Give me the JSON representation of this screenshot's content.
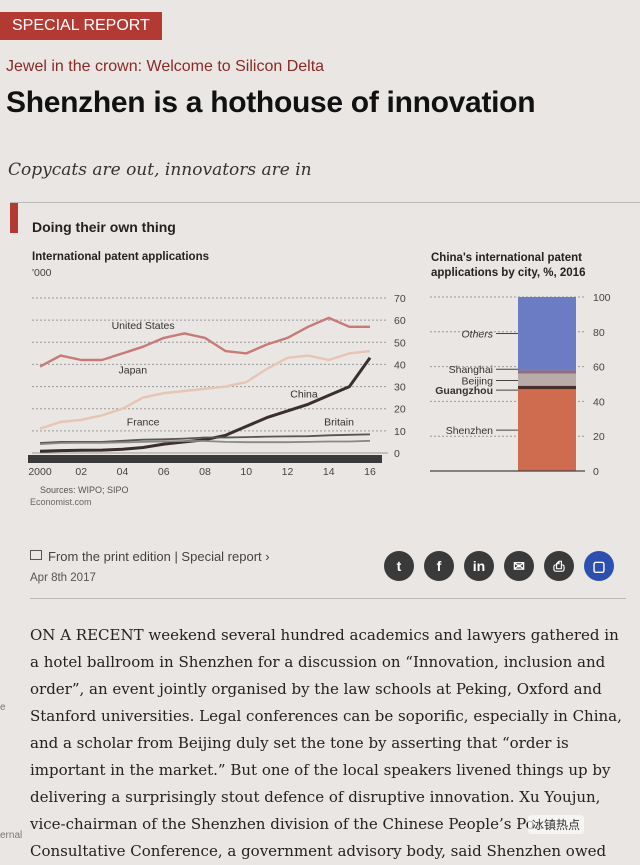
{
  "header": {
    "tag": "SPECIAL REPORT",
    "kicker": "Jewel in the crown: Welcome to Silicon Delta",
    "headline": "Shenzhen is a hothouse of innovation",
    "subhead": "Copycats are out, innovators are in"
  },
  "chart_data": [
    {
      "type": "line",
      "title": "Doing their own thing",
      "subtitle": "International patent applications",
      "unit": "'000",
      "x": [
        2000,
        2001,
        2002,
        2003,
        2004,
        2005,
        2006,
        2007,
        2008,
        2009,
        2010,
        2011,
        2012,
        2013,
        2014,
        2015,
        2016
      ],
      "xticks": [
        "2000",
        "02",
        "04",
        "06",
        "08",
        "10",
        "12",
        "14",
        "16"
      ],
      "xlim": [
        2000,
        2016
      ],
      "ylim": [
        0,
        70
      ],
      "yticks": [
        "0",
        "10",
        "20",
        "30",
        "40",
        "50",
        "60",
        "70"
      ],
      "series": [
        {
          "name": "United States",
          "color": "#c77a78",
          "values": [
            39,
            44,
            42,
            42,
            45,
            48,
            52,
            54,
            52,
            46,
            45,
            49,
            52,
            57,
            61,
            57,
            57
          ]
        },
        {
          "name": "Japan",
          "color": "#e8c4b4",
          "values": [
            11,
            14,
            15,
            17,
            20,
            25,
            27,
            28,
            29,
            30,
            32,
            38,
            43,
            44,
            42,
            45,
            46
          ]
        },
        {
          "name": "China",
          "color": "#3a2f2f",
          "values": [
            0.8,
            1.1,
            1.2,
            1.3,
            1.7,
            2.5,
            4,
            5,
            6,
            8,
            12,
            16,
            19,
            22,
            26,
            30,
            43
          ]
        },
        {
          "name": "France",
          "color": "#555555",
          "values": [
            4.5,
            5,
            5,
            5,
            5.5,
            6,
            6.2,
            6.5,
            7,
            7,
            7.2,
            7.4,
            7.5,
            7.6,
            8,
            8.2,
            8.4
          ]
        },
        {
          "name": "Britain",
          "color": "#888888",
          "values": [
            4,
            4.5,
            4.6,
            4.6,
            4.8,
            5,
            5.2,
            5.4,
            5.4,
            5,
            4.9,
            4.9,
            4.9,
            5,
            5.2,
            5.2,
            5.5
          ]
        }
      ],
      "sources": "Sources: WIPO; SIPO",
      "credit": "Economist.com"
    },
    {
      "type": "bar",
      "title": "China's international patent applications by city, %, 2016",
      "ylim": [
        0,
        100
      ],
      "yticks": [
        "0",
        "20",
        "40",
        "60",
        "80",
        "100"
      ],
      "stacked": [
        {
          "name": "Shenzhen",
          "value": 47,
          "color": "#cf6b4e"
        },
        {
          "name": "Guangzhou",
          "value": 2,
          "color": "#4a2e2a"
        },
        {
          "name": "Beijing",
          "value": 7,
          "color": "#b9aca8"
        },
        {
          "name": "Shanghai",
          "value": 2,
          "color": "#8a6f88"
        },
        {
          "name": "Others",
          "value": 42,
          "color": "#6b7cc4"
        }
      ]
    }
  ],
  "article": {
    "edition": "From the print edition | Special report ›",
    "date": "Apr 8th 2017",
    "share": [
      {
        "icon": "twitter-icon",
        "glyph": "t"
      },
      {
        "icon": "facebook-icon",
        "glyph": "f"
      },
      {
        "icon": "linkedin-icon",
        "glyph": "in"
      },
      {
        "icon": "email-icon",
        "glyph": "✉"
      },
      {
        "icon": "print-icon",
        "glyph": "⎙"
      },
      {
        "icon": "comment-icon",
        "glyph": "▢"
      }
    ],
    "body": "ON A RECENT weekend several hundred academics and lawyers gathered in a hotel ballroom in Shenzhen for a discussion on “Innovation, inclusion and order”, an event jointly organised by the law schools at Peking, Oxford and Stanford universities. Legal conferences can be soporific, especially in China, and a scholar from Beijing duly set the tone by asserting that “order is important in the market.” But one of the local speakers livened things up by delivering a surprisingly stout defence of disruptive innovation. Xu Youjun, vice-chairman of the Shenzhen division of the Chinese People’s Po... Consultative Conference, a government advisory body, said Shenzhen owed",
    "margin_fragments": [
      "e",
      "ernal"
    ],
    "watermark": "冰镇热点"
  }
}
